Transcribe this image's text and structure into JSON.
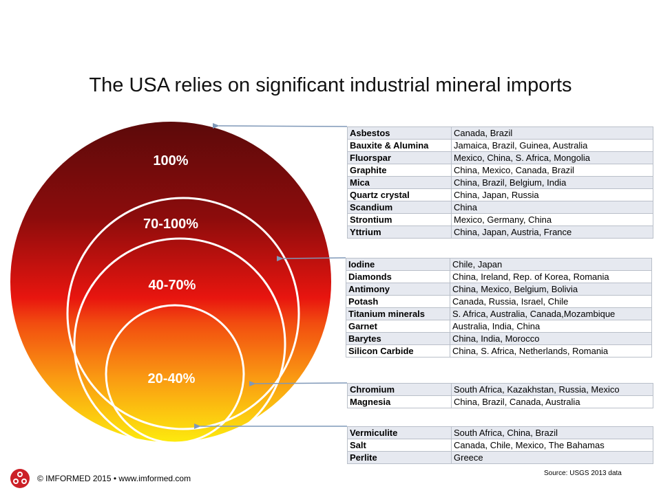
{
  "title": "The USA relies on significant industrial mineral imports",
  "circles": [
    {
      "label": "100%"
    },
    {
      "label": "70-100%"
    },
    {
      "label": "40-70%"
    },
    {
      "label": "20-40%"
    }
  ],
  "colors": {
    "dark_red": "#5c0a0a",
    "red": "#e8150f",
    "orange": "#f87d12",
    "yellow": "#fdea0e",
    "arrow": "#7f98b8",
    "table_border": "#b9bfc9",
    "table_stripe": "#e6e9f0",
    "logo_red": "#cc2027"
  },
  "tables": [
    {
      "rows": [
        [
          "Asbestos",
          "Canada, Brazil"
        ],
        [
          "Bauxite & Alumina",
          "Jamaica, Brazil, Guinea, Australia"
        ],
        [
          "Fluorspar",
          "Mexico, China, S. Africa, Mongolia"
        ],
        [
          "Graphite",
          "China, Mexico, Canada, Brazil"
        ],
        [
          "Mica",
          "China, Brazil, Belgium, India"
        ],
        [
          "Quartz crystal",
          "China, Japan, Russia"
        ],
        [
          "Scandium",
          "China"
        ],
        [
          "Strontium",
          "Mexico, Germany, China"
        ],
        [
          "Yttrium",
          "China, Japan, Austria, France"
        ]
      ]
    },
    {
      "rows": [
        [
          "Iodine",
          "Chile, Japan"
        ],
        [
          "Diamonds",
          "China, Ireland, Rep. of Korea, Romania"
        ],
        [
          "Antimony",
          "China, Mexico, Belgium, Bolivia"
        ],
        [
          "Potash",
          "Canada, Russia, Israel, Chile"
        ],
        [
          "Titanium minerals",
          "S. Africa, Australia, Canada,Mozambique"
        ],
        [
          "Garnet",
          "Australia, India, China"
        ],
        [
          "Barytes",
          "China, India, Morocco"
        ],
        [
          "Silicon Carbide",
          "China, S. Africa, Netherlands, Romania"
        ]
      ]
    },
    {
      "rows": [
        [
          "Chromium",
          "South Africa, Kazakhstan, Russia, Mexico"
        ],
        [
          "Magnesia",
          "China, Brazil, Canada, Australia"
        ]
      ]
    },
    {
      "rows": [
        [
          "Vermiculite",
          "South Africa, China, Brazil"
        ],
        [
          "Salt",
          "Canada, Chile, Mexico, The Bahamas"
        ],
        [
          "Perlite",
          "Greece"
        ]
      ]
    }
  ],
  "footer": {
    "copyright": "© IMFORMED  2015 • www.imformed.com",
    "logo_icon": "imformed-logo-icon"
  },
  "source": "Source: USGS 2013 data"
}
